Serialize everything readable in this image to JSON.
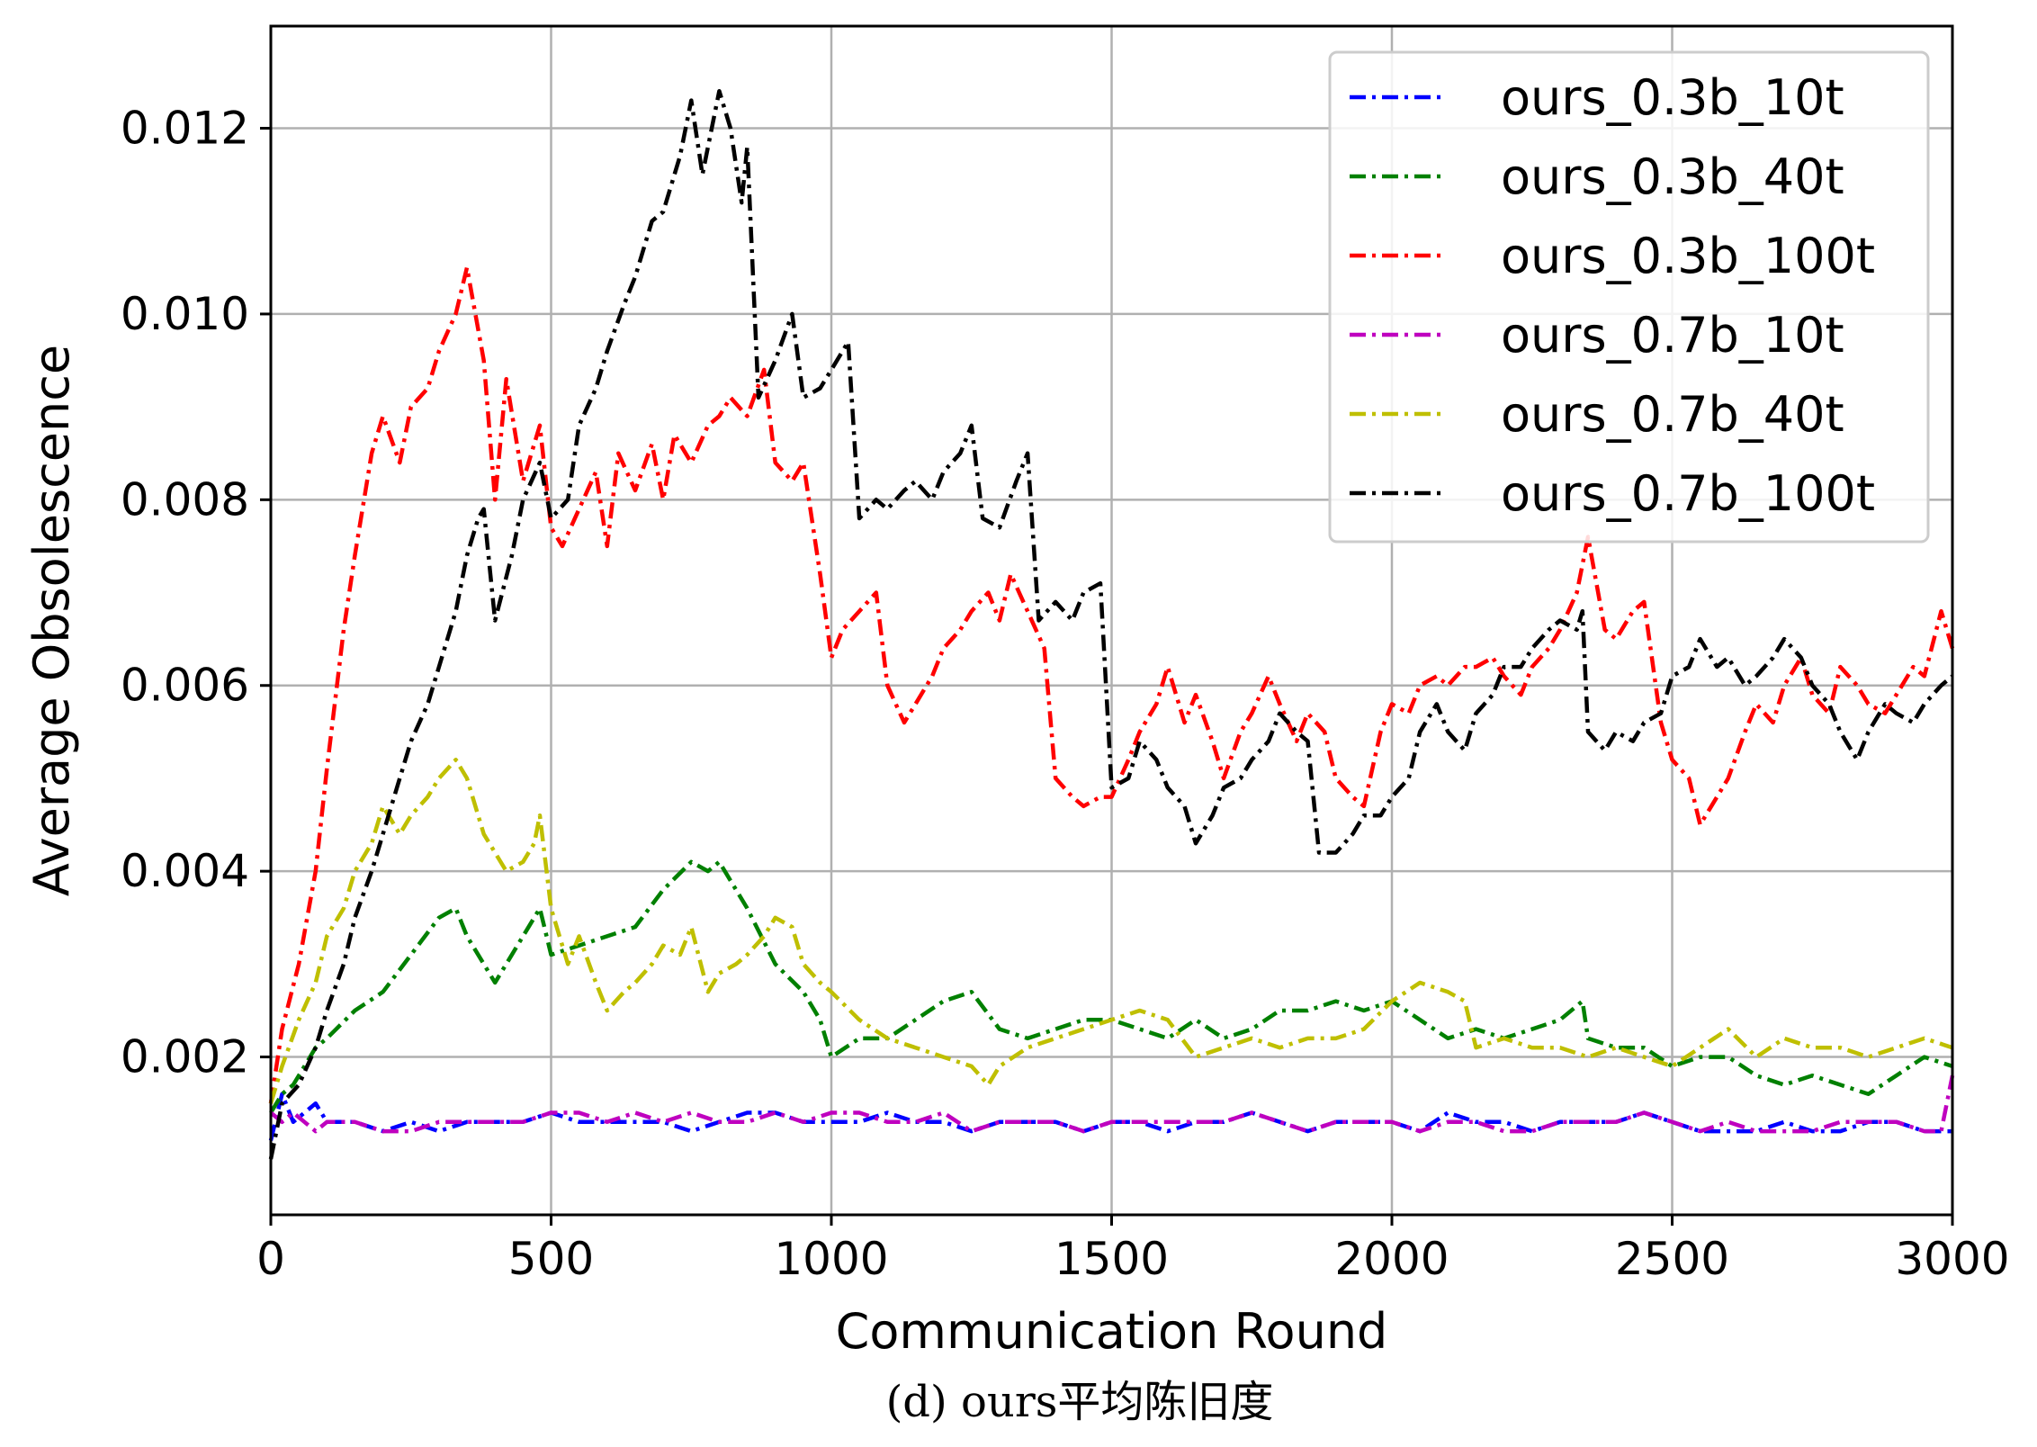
{
  "chart_data": {
    "type": "line",
    "caption": "(d) ours平均陈旧度",
    "xlabel": "Communication Round",
    "ylabel": "Average Obsolescence",
    "xlim": [
      0,
      3000
    ],
    "ylim": [
      0.0003,
      0.0131
    ],
    "xticks": [
      0,
      500,
      1000,
      1500,
      2000,
      2500,
      3000
    ],
    "xtick_labels": [
      "0",
      "500",
      "1000",
      "1500",
      "2000",
      "2500",
      "3000"
    ],
    "yticks": [
      0.002,
      0.004,
      0.006,
      0.008,
      0.01,
      0.012
    ],
    "ytick_labels": [
      "0.002",
      "0.004",
      "0.006",
      "0.008",
      "0.010",
      "0.012"
    ],
    "grid": true,
    "legend_position": "upper-right",
    "line_style": "dash-dot",
    "series": [
      {
        "name": "ours_0.3b_10t",
        "color": "#0000ff",
        "x": [
          0,
          20,
          40,
          60,
          80,
          100,
          150,
          200,
          250,
          300,
          350,
          400,
          450,
          500,
          550,
          600,
          650,
          700,
          750,
          800,
          850,
          900,
          950,
          1000,
          1050,
          1100,
          1150,
          1200,
          1250,
          1300,
          1350,
          1400,
          1450,
          1500,
          1550,
          1600,
          1650,
          1700,
          1750,
          1800,
          1850,
          1900,
          1950,
          2000,
          2050,
          2100,
          2150,
          2200,
          2250,
          2300,
          2350,
          2400,
          2450,
          2500,
          2550,
          2600,
          2650,
          2700,
          2750,
          2800,
          2850,
          2900,
          2950,
          3000
        ],
        "y": [
          0.0011,
          0.0016,
          0.0013,
          0.0014,
          0.0015,
          0.0013,
          0.0013,
          0.0012,
          0.0013,
          0.0012,
          0.0013,
          0.0013,
          0.0013,
          0.0014,
          0.0013,
          0.0013,
          0.0013,
          0.0013,
          0.0012,
          0.0013,
          0.0014,
          0.0014,
          0.0013,
          0.0013,
          0.0013,
          0.0014,
          0.0013,
          0.0013,
          0.0012,
          0.0013,
          0.0013,
          0.0013,
          0.0012,
          0.0013,
          0.0013,
          0.0012,
          0.0013,
          0.0013,
          0.0014,
          0.0013,
          0.0012,
          0.0013,
          0.0013,
          0.0013,
          0.0012,
          0.0014,
          0.0013,
          0.0013,
          0.0012,
          0.0013,
          0.0013,
          0.0013,
          0.0014,
          0.0013,
          0.0012,
          0.0012,
          0.0012,
          0.0013,
          0.0012,
          0.0012,
          0.0013,
          0.0013,
          0.0012,
          0.0012
        ]
      },
      {
        "name": "ours_0.3b_40t",
        "color": "#008000",
        "x": [
          0,
          20,
          40,
          60,
          80,
          100,
          150,
          200,
          250,
          300,
          330,
          350,
          400,
          450,
          480,
          500,
          550,
          600,
          650,
          700,
          750,
          780,
          800,
          850,
          900,
          950,
          980,
          1000,
          1050,
          1100,
          1150,
          1200,
          1250,
          1300,
          1350,
          1400,
          1450,
          1500,
          1550,
          1600,
          1650,
          1700,
          1750,
          1800,
          1850,
          1900,
          1950,
          2000,
          2050,
          2100,
          2150,
          2200,
          2250,
          2300,
          2340,
          2350,
          2400,
          2450,
          2500,
          2550,
          2600,
          2650,
          2700,
          2750,
          2800,
          2850,
          2900,
          2950,
          3000
        ],
        "y": [
          0.0014,
          0.0016,
          0.0017,
          0.0019,
          0.0021,
          0.0022,
          0.0025,
          0.0027,
          0.0031,
          0.0035,
          0.0036,
          0.0033,
          0.0028,
          0.0033,
          0.0036,
          0.0031,
          0.0032,
          0.0033,
          0.0034,
          0.0038,
          0.0041,
          0.004,
          0.0041,
          0.0036,
          0.003,
          0.0027,
          0.0024,
          0.002,
          0.0022,
          0.0022,
          0.0024,
          0.0026,
          0.0027,
          0.0023,
          0.0022,
          0.0023,
          0.0024,
          0.0024,
          0.0023,
          0.0022,
          0.0024,
          0.0022,
          0.0023,
          0.0025,
          0.0025,
          0.0026,
          0.0025,
          0.0026,
          0.0024,
          0.0022,
          0.0023,
          0.0022,
          0.0023,
          0.0024,
          0.0026,
          0.0022,
          0.0021,
          0.0021,
          0.0019,
          0.002,
          0.002,
          0.0018,
          0.0017,
          0.0018,
          0.0017,
          0.0016,
          0.0018,
          0.002,
          0.0019
        ]
      },
      {
        "name": "ours_0.3b_100t",
        "color": "#ff0000",
        "x": [
          0,
          20,
          50,
          80,
          100,
          130,
          150,
          180,
          200,
          230,
          250,
          280,
          300,
          330,
          350,
          380,
          400,
          420,
          450,
          480,
          500,
          520,
          550,
          580,
          600,
          620,
          650,
          680,
          700,
          720,
          750,
          780,
          800,
          820,
          850,
          880,
          900,
          930,
          950,
          980,
          1000,
          1020,
          1050,
          1080,
          1100,
          1130,
          1150,
          1180,
          1200,
          1230,
          1250,
          1280,
          1300,
          1320,
          1350,
          1380,
          1400,
          1430,
          1450,
          1480,
          1500,
          1530,
          1550,
          1580,
          1600,
          1630,
          1650,
          1680,
          1700,
          1730,
          1750,
          1780,
          1800,
          1830,
          1850,
          1880,
          1900,
          1930,
          1950,
          1980,
          2000,
          2030,
          2050,
          2080,
          2100,
          2130,
          2150,
          2180,
          2200,
          2230,
          2250,
          2280,
          2300,
          2330,
          2350,
          2380,
          2400,
          2430,
          2450,
          2480,
          2500,
          2530,
          2550,
          2580,
          2600,
          2630,
          2650,
          2680,
          2700,
          2730,
          2750,
          2780,
          2800,
          2830,
          2850,
          2880,
          2900,
          2930,
          2950,
          2980,
          3000
        ],
        "y": [
          0.0015,
          0.0023,
          0.003,
          0.004,
          0.0051,
          0.0066,
          0.0074,
          0.0085,
          0.0089,
          0.0084,
          0.009,
          0.0092,
          0.0096,
          0.01,
          0.0105,
          0.0095,
          0.008,
          0.0093,
          0.0082,
          0.0088,
          0.0077,
          0.0075,
          0.0079,
          0.0083,
          0.0075,
          0.0085,
          0.0081,
          0.0086,
          0.008,
          0.0087,
          0.0084,
          0.0088,
          0.0089,
          0.0091,
          0.0089,
          0.0094,
          0.0084,
          0.0082,
          0.0084,
          0.0072,
          0.0063,
          0.0066,
          0.0068,
          0.007,
          0.006,
          0.0056,
          0.0058,
          0.0061,
          0.0064,
          0.0066,
          0.0068,
          0.007,
          0.0067,
          0.0072,
          0.0068,
          0.0064,
          0.005,
          0.0048,
          0.0047,
          0.0048,
          0.0048,
          0.0052,
          0.0055,
          0.0058,
          0.0062,
          0.0056,
          0.0059,
          0.0054,
          0.005,
          0.0055,
          0.0057,
          0.0061,
          0.0058,
          0.0054,
          0.0057,
          0.0055,
          0.005,
          0.0048,
          0.0047,
          0.0055,
          0.0058,
          0.0057,
          0.006,
          0.0061,
          0.006,
          0.0062,
          0.0062,
          0.0063,
          0.0061,
          0.0059,
          0.0062,
          0.0064,
          0.0066,
          0.007,
          0.0076,
          0.0066,
          0.0065,
          0.0068,
          0.0069,
          0.0056,
          0.0052,
          0.005,
          0.0045,
          0.0048,
          0.005,
          0.0055,
          0.0058,
          0.0056,
          0.006,
          0.0063,
          0.0059,
          0.0057,
          0.0062,
          0.006,
          0.0058,
          0.0057,
          0.0059,
          0.0062,
          0.0061,
          0.0068,
          0.0064
        ]
      },
      {
        "name": "ours_0.7b_10t",
        "color": "#bf00bf",
        "x": [
          0,
          20,
          40,
          60,
          80,
          100,
          150,
          200,
          250,
          300,
          350,
          400,
          450,
          500,
          550,
          600,
          650,
          700,
          750,
          800,
          850,
          900,
          950,
          1000,
          1050,
          1100,
          1150,
          1200,
          1250,
          1300,
          1350,
          1400,
          1450,
          1500,
          1550,
          1600,
          1650,
          1700,
          1750,
          1800,
          1850,
          1900,
          1950,
          2000,
          2050,
          2100,
          2150,
          2200,
          2250,
          2300,
          2350,
          2400,
          2450,
          2500,
          2550,
          2600,
          2650,
          2700,
          2750,
          2800,
          2850,
          2900,
          2950,
          2980,
          3000
        ],
        "y": [
          0.0014,
          0.0013,
          0.0014,
          0.0013,
          0.0012,
          0.0013,
          0.0013,
          0.0012,
          0.0012,
          0.0013,
          0.0013,
          0.0013,
          0.0013,
          0.0014,
          0.0014,
          0.0013,
          0.0014,
          0.0013,
          0.0014,
          0.0013,
          0.0013,
          0.0014,
          0.0013,
          0.0014,
          0.0014,
          0.0013,
          0.0013,
          0.0014,
          0.0012,
          0.0013,
          0.0013,
          0.0013,
          0.0012,
          0.0013,
          0.0013,
          0.0013,
          0.0013,
          0.0013,
          0.0014,
          0.0013,
          0.0012,
          0.0013,
          0.0013,
          0.0013,
          0.0012,
          0.0013,
          0.0013,
          0.0012,
          0.0012,
          0.0013,
          0.0013,
          0.0013,
          0.0014,
          0.0013,
          0.0012,
          0.0013,
          0.0012,
          0.0012,
          0.0012,
          0.0013,
          0.0013,
          0.0013,
          0.0012,
          0.0012,
          0.0018
        ]
      },
      {
        "name": "ours_0.7b_40t",
        "color": "#bfbf00",
        "x": [
          0,
          20,
          50,
          80,
          100,
          130,
          150,
          180,
          200,
          230,
          250,
          280,
          300,
          330,
          350,
          380,
          400,
          420,
          450,
          470,
          480,
          500,
          530,
          550,
          580,
          600,
          630,
          650,
          680,
          700,
          730,
          750,
          780,
          800,
          830,
          850,
          880,
          900,
          930,
          950,
          980,
          1000,
          1050,
          1100,
          1150,
          1200,
          1250,
          1280,
          1300,
          1350,
          1400,
          1450,
          1500,
          1550,
          1600,
          1650,
          1700,
          1750,
          1800,
          1850,
          1900,
          1950,
          2000,
          2050,
          2100,
          2130,
          2150,
          2200,
          2250,
          2300,
          2350,
          2400,
          2450,
          2500,
          2550,
          2600,
          2650,
          2700,
          2750,
          2800,
          2850,
          2900,
          2950,
          3000
        ],
        "y": [
          0.0015,
          0.0019,
          0.0024,
          0.0028,
          0.0033,
          0.0036,
          0.004,
          0.0043,
          0.0047,
          0.0044,
          0.0046,
          0.0048,
          0.005,
          0.0052,
          0.005,
          0.0044,
          0.0042,
          0.004,
          0.0041,
          0.0043,
          0.0046,
          0.0036,
          0.003,
          0.0033,
          0.0028,
          0.0025,
          0.0027,
          0.0028,
          0.003,
          0.0032,
          0.0031,
          0.0034,
          0.0027,
          0.0029,
          0.003,
          0.0031,
          0.0033,
          0.0035,
          0.0034,
          0.003,
          0.0028,
          0.0027,
          0.0024,
          0.0022,
          0.0021,
          0.002,
          0.0019,
          0.0017,
          0.0019,
          0.0021,
          0.0022,
          0.0023,
          0.0024,
          0.0025,
          0.0024,
          0.002,
          0.0021,
          0.0022,
          0.0021,
          0.0022,
          0.0022,
          0.0023,
          0.0026,
          0.0028,
          0.0027,
          0.0026,
          0.0021,
          0.0022,
          0.0021,
          0.0021,
          0.002,
          0.0021,
          0.002,
          0.0019,
          0.0021,
          0.0023,
          0.002,
          0.0022,
          0.0021,
          0.0021,
          0.002,
          0.0021,
          0.0022,
          0.0021
        ]
      },
      {
        "name": "ours_0.7b_100t",
        "color": "#000000",
        "x": [
          0,
          20,
          50,
          80,
          100,
          130,
          150,
          180,
          200,
          230,
          250,
          280,
          300,
          330,
          350,
          370,
          380,
          400,
          430,
          450,
          480,
          500,
          530,
          550,
          580,
          600,
          630,
          650,
          680,
          700,
          730,
          750,
          770,
          780,
          800,
          820,
          840,
          850,
          870,
          900,
          930,
          950,
          980,
          1000,
          1030,
          1050,
          1080,
          1100,
          1130,
          1150,
          1180,
          1200,
          1230,
          1250,
          1270,
          1300,
          1330,
          1350,
          1370,
          1400,
          1430,
          1450,
          1480,
          1500,
          1530,
          1550,
          1580,
          1600,
          1630,
          1650,
          1680,
          1700,
          1730,
          1750,
          1780,
          1800,
          1830,
          1850,
          1870,
          1900,
          1930,
          1950,
          1980,
          2000,
          2030,
          2050,
          2080,
          2100,
          2130,
          2150,
          2180,
          2200,
          2230,
          2250,
          2280,
          2300,
          2330,
          2340,
          2350,
          2380,
          2400,
          2430,
          2450,
          2480,
          2500,
          2530,
          2550,
          2580,
          2600,
          2630,
          2650,
          2680,
          2700,
          2730,
          2750,
          2780,
          2800,
          2830,
          2850,
          2880,
          2900,
          2930,
          2950,
          2980,
          3000
        ],
        "y": [
          0.0009,
          0.0015,
          0.0017,
          0.0021,
          0.0025,
          0.003,
          0.0035,
          0.004,
          0.0044,
          0.005,
          0.0054,
          0.0058,
          0.0062,
          0.0068,
          0.0074,
          0.0078,
          0.0079,
          0.0067,
          0.0074,
          0.008,
          0.0084,
          0.0078,
          0.008,
          0.0088,
          0.0092,
          0.0096,
          0.0101,
          0.0104,
          0.011,
          0.0111,
          0.0117,
          0.0123,
          0.0115,
          0.0118,
          0.0124,
          0.012,
          0.0112,
          0.0118,
          0.0091,
          0.0095,
          0.01,
          0.0091,
          0.0092,
          0.0094,
          0.0097,
          0.0078,
          0.008,
          0.0079,
          0.0081,
          0.0082,
          0.008,
          0.0083,
          0.0085,
          0.0088,
          0.0078,
          0.0077,
          0.0082,
          0.0085,
          0.0067,
          0.0069,
          0.0067,
          0.007,
          0.0071,
          0.0049,
          0.005,
          0.0054,
          0.0052,
          0.0049,
          0.0047,
          0.0043,
          0.0046,
          0.0049,
          0.005,
          0.0052,
          0.0054,
          0.0057,
          0.0055,
          0.0054,
          0.0042,
          0.0042,
          0.0044,
          0.0046,
          0.0046,
          0.0048,
          0.005,
          0.0055,
          0.0058,
          0.0055,
          0.0053,
          0.0057,
          0.0059,
          0.0062,
          0.0062,
          0.0064,
          0.0066,
          0.0067,
          0.0066,
          0.0068,
          0.0055,
          0.0053,
          0.0055,
          0.0054,
          0.0056,
          0.0057,
          0.0061,
          0.0062,
          0.0065,
          0.0062,
          0.0063,
          0.006,
          0.0061,
          0.0063,
          0.0065,
          0.0063,
          0.006,
          0.0058,
          0.0055,
          0.0052,
          0.0055,
          0.0058,
          0.0057,
          0.0056,
          0.0058,
          0.006,
          0.0061
        ]
      }
    ]
  }
}
